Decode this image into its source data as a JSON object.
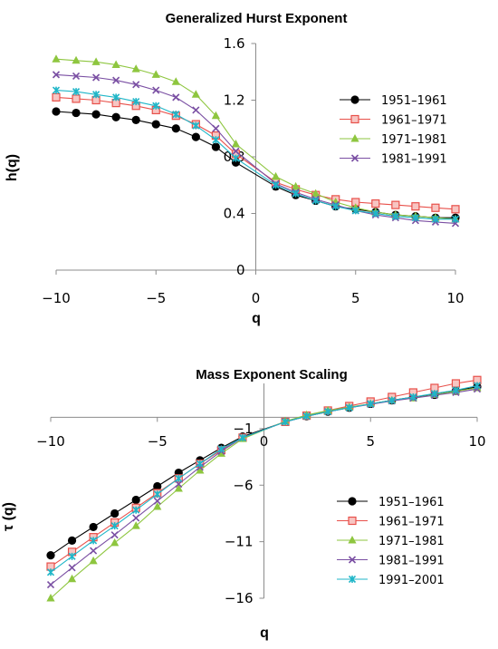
{
  "chart_data": [
    {
      "type": "line",
      "title": "Generalized Hurst Exponent",
      "xlabel": "q",
      "ylabel": "h(q)",
      "xlim": [
        -10,
        10
      ],
      "ylim": [
        0,
        1.6
      ],
      "x_ticks": [
        "−10",
        "−5",
        "0",
        "5",
        "10"
      ],
      "y_ticks": [
        "0",
        "0.4",
        "0.8",
        "1.2",
        "1.6"
      ],
      "legend_position": "right",
      "x": [
        -10,
        -9,
        -8,
        -7,
        -6,
        -5,
        -4,
        -3,
        -2,
        -1,
        1,
        2,
        3,
        4,
        5,
        6,
        7,
        8,
        9,
        10
      ],
      "series": [
        {
          "name": "1951–1961",
          "color": "#000000",
          "marker": "circle",
          "values": [
            1.12,
            1.11,
            1.1,
            1.08,
            1.06,
            1.03,
            1.0,
            0.94,
            0.87,
            0.76,
            0.59,
            0.53,
            0.49,
            0.45,
            0.43,
            0.41,
            0.39,
            0.38,
            0.37,
            0.37
          ]
        },
        {
          "name": "1961–1971",
          "color": "#e8504a",
          "marker": "square",
          "values": [
            1.22,
            1.21,
            1.2,
            1.18,
            1.16,
            1.13,
            1.09,
            1.03,
            0.95,
            0.82,
            0.62,
            0.57,
            0.53,
            0.5,
            0.48,
            0.47,
            0.46,
            0.45,
            0.44,
            0.43
          ]
        },
        {
          "name": "1971–1981",
          "color": "#8ec63f",
          "marker": "triangle",
          "values": [
            1.49,
            1.48,
            1.47,
            1.45,
            1.42,
            1.38,
            1.33,
            1.24,
            1.09,
            0.89,
            0.66,
            0.59,
            0.54,
            0.48,
            0.44,
            0.41,
            0.39,
            0.38,
            0.37,
            0.36
          ]
        },
        {
          "name": "1981–1991",
          "color": "#7a4fa3",
          "marker": "x",
          "values": [
            1.38,
            1.37,
            1.36,
            1.34,
            1.31,
            1.27,
            1.22,
            1.13,
            1.0,
            0.84,
            0.61,
            0.55,
            0.5,
            0.46,
            0.42,
            0.39,
            0.37,
            0.35,
            0.34,
            0.33
          ]
        },
        {
          "name": "1991–2001",
          "color": "#1fb6c8",
          "marker": "asterisk",
          "in_legend": false,
          "values": [
            1.27,
            1.26,
            1.24,
            1.22,
            1.19,
            1.16,
            1.1,
            1.02,
            0.92,
            0.79,
            0.6,
            0.54,
            0.49,
            0.45,
            0.42,
            0.4,
            0.38,
            0.37,
            0.36,
            0.36
          ]
        }
      ]
    },
    {
      "type": "line",
      "title": "Mass Exponent Scaling",
      "xlabel": "q",
      "ylabel": "τ (q)",
      "xlim": [
        -10,
        10
      ],
      "ylim": [
        -16,
        3
      ],
      "x_ticks": [
        "−10",
        "−5",
        "0",
        "5",
        "10"
      ],
      "y_ticks": [
        "−1",
        "−6",
        "−11",
        "−16"
      ],
      "legend_position": "bottom-right",
      "x": [
        -10,
        -9,
        -8,
        -7,
        -6,
        -5,
        -4,
        -3,
        -2,
        -1,
        1,
        2,
        3,
        4,
        5,
        6,
        7,
        8,
        9,
        10
      ],
      "series": [
        {
          "name": "1951–1961",
          "color": "#000000",
          "marker": "circle",
          "values": [
            -12.2,
            -10.9,
            -9.7,
            -8.5,
            -7.3,
            -6.1,
            -4.9,
            -3.8,
            -2.7,
            -1.7,
            -0.4,
            0.1,
            0.5,
            0.85,
            1.2,
            1.5,
            1.8,
            2.0,
            2.35,
            2.7
          ]
        },
        {
          "name": "1961–1971",
          "color": "#e8504a",
          "marker": "square",
          "values": [
            -13.2,
            -11.9,
            -10.6,
            -9.3,
            -8.0,
            -6.7,
            -5.4,
            -4.1,
            -2.9,
            -1.8,
            -0.4,
            0.15,
            0.6,
            1.0,
            1.4,
            1.8,
            2.2,
            2.6,
            3.0,
            3.3
          ]
        },
        {
          "name": "1971–1981",
          "color": "#8ec63f",
          "marker": "triangle",
          "values": [
            -16.0,
            -14.3,
            -12.7,
            -11.1,
            -9.6,
            -7.9,
            -6.3,
            -4.7,
            -3.2,
            -1.9,
            -0.35,
            0.2,
            0.6,
            0.9,
            1.2,
            1.5,
            1.7,
            2.0,
            2.3,
            2.6
          ]
        },
        {
          "name": "1981–1991",
          "color": "#7a4fa3",
          "marker": "x",
          "values": [
            -14.8,
            -13.3,
            -11.8,
            -10.4,
            -8.9,
            -7.4,
            -5.9,
            -4.4,
            -3.0,
            -1.8,
            -0.4,
            0.1,
            0.5,
            0.85,
            1.15,
            1.45,
            1.7,
            1.95,
            2.2,
            2.5
          ]
        },
        {
          "name": "1991–2001",
          "color": "#1fb6c8",
          "marker": "asterisk",
          "values": [
            -13.7,
            -12.3,
            -10.9,
            -9.6,
            -8.2,
            -6.8,
            -5.4,
            -4.1,
            -2.8,
            -1.8,
            -0.4,
            0.1,
            0.5,
            0.85,
            1.2,
            1.5,
            1.8,
            2.1,
            2.4,
            2.8
          ]
        }
      ]
    }
  ]
}
